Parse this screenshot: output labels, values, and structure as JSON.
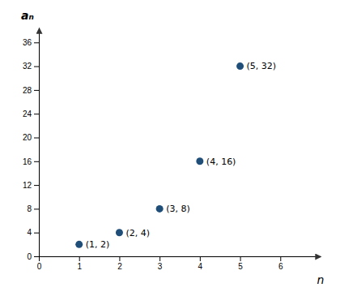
{
  "chart_data": {
    "type": "scatter",
    "xlabel": "n",
    "ylabel": "aₙ",
    "x": [
      1,
      2,
      3,
      4,
      5
    ],
    "values": [
      2,
      4,
      8,
      16,
      32
    ],
    "value_labels": [
      "(1, 2)",
      "(2, 4)",
      "(3, 8)",
      "(4, 16)",
      "(5, 32)"
    ],
    "data_labels": true,
    "color": "#1f4e79",
    "xlim": [
      0,
      7.0
    ],
    "ylim": [
      0,
      38.5
    ],
    "xticks": [
      0,
      1,
      2,
      3,
      4,
      5,
      6
    ],
    "yticks": [
      0,
      4,
      8,
      12,
      16,
      20,
      24,
      28,
      32,
      36
    ],
    "grid": false
  }
}
